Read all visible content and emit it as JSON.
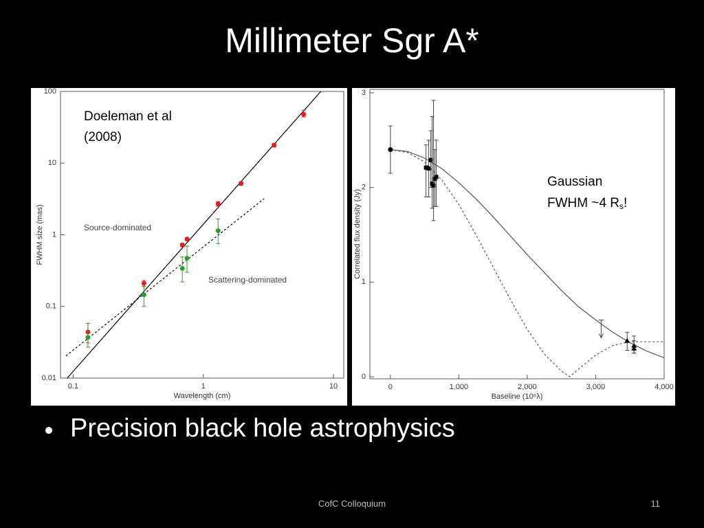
{
  "slide": {
    "title": "Millimeter Sgr A*",
    "bullets": [
      "Precision black hole astrophysics"
    ],
    "footer": "CofC Colloquium",
    "page_number": "11"
  },
  "chart_data": [
    {
      "type": "scatter",
      "log_x": true,
      "log_y": true,
      "x_label": "Wavelength (cm)",
      "y_label": "FWHM size (mas)",
      "xlim": [
        0.08,
        12
      ],
      "ylim": [
        0.01,
        100
      ],
      "xticks": [
        0.1,
        1,
        10
      ],
      "yticks": [
        0.01,
        0.1,
        1,
        10,
        100
      ],
      "annotations": [
        "Doeleman et al",
        "(2008)",
        "Source-dominated",
        "Scattering-dominated"
      ],
      "series": [
        {
          "color": "#e02020",
          "marker": "circle",
          "x": [
            0.13,
            0.35,
            0.69,
            0.75,
            1.3,
            1.95,
            3.5,
            5.9
          ],
          "values": [
            0.044,
            0.21,
            0.72,
            0.87,
            2.7,
            5.2,
            17.8,
            48
          ],
          "error_low": [
            0.031,
            0.19,
            0.68,
            0.83,
            2.5,
            4.9,
            16.8,
            44
          ],
          "error_high": [
            0.058,
            0.23,
            0.76,
            0.91,
            2.9,
            5.5,
            18.8,
            55
          ]
        },
        {
          "color": "#2aa02a",
          "marker": "circle",
          "x": [
            0.13,
            0.35,
            0.69,
            0.75,
            1.3
          ],
          "values": [
            0.037,
            0.146,
            0.34,
            0.47,
            1.14
          ],
          "error_low": [
            0.027,
            0.1,
            0.22,
            0.3,
            0.75
          ],
          "error_high": [
            0.058,
            0.19,
            0.49,
            0.69,
            1.66
          ]
        }
      ],
      "lines": [
        {
          "style": "solid",
          "color": "#000000",
          "x": [
            0.09,
            8.0
          ],
          "values": [
            0.01,
            100
          ]
        },
        {
          "style": "dotted",
          "color": "#000000",
          "x": [
            0.088,
            2.94
          ],
          "values": [
            0.0204,
            3.2
          ]
        }
      ]
    },
    {
      "type": "scatter",
      "log_x": false,
      "log_y": false,
      "x_label": "Baseline (10⁶λ)",
      "y_label": "Correlated flux density (Jy)",
      "xlim": [
        -300,
        4000
      ],
      "ylim": [
        0,
        3
      ],
      "xticks": [
        0,
        {
          "value": 1000,
          "label": "1,000"
        },
        {
          "value": 2000,
          "label": "2,000"
        },
        {
          "value": 3000,
          "label": "3,000"
        },
        {
          "value": 4000,
          "label": "4,000"
        }
      ],
      "yticks": [
        0,
        1,
        2,
        3
      ],
      "annotations": [
        "Gaussian",
        "FWHM ~4 R",
        "s",
        "!"
      ],
      "series": [
        {
          "color": "#000000",
          "marker": "circle",
          "x": [
            0
          ],
          "values": [
            2.4
          ],
          "error_low": [
            2.15
          ],
          "error_high": [
            2.65
          ]
        },
        {
          "color": "#000000",
          "marker": "square",
          "x": [
            520,
            560,
            590,
            610,
            630,
            650,
            670
          ],
          "values": [
            2.21,
            2.2,
            2.29,
            2.04,
            2.02,
            2.09,
            2.11
          ],
          "error_low": [
            1.9,
            1.9,
            2.0,
            1.78,
            1.65,
            1.8,
            1.8
          ],
          "error_high": [
            2.45,
            2.5,
            2.6,
            2.75,
            2.92,
            2.4,
            2.5
          ]
        },
        {
          "color": "#000000",
          "marker": "triangle",
          "x": [
            3460,
            3560,
            3560
          ],
          "values": [
            0.38,
            0.33,
            0.3
          ],
          "error_low": [
            0.28,
            0.25,
            0.25
          ],
          "error_high": [
            0.47,
            0.43,
            0.38
          ]
        },
        {
          "color": "#000000",
          "marker": "upper-limit",
          "x": [
            3080
          ],
          "values": [
            0.6
          ]
        }
      ],
      "lines": [
        {
          "style": "solid",
          "color": "#555555",
          "x": [
            0,
            250,
            500,
            750,
            1000,
            1250,
            1500,
            1750,
            2000,
            2250,
            2500,
            2750,
            3000,
            3250,
            3500,
            3750,
            4000
          ],
          "values": [
            2.4,
            2.38,
            2.31,
            2.2,
            2.05,
            1.88,
            1.69,
            1.49,
            1.29,
            1.1,
            0.91,
            0.74,
            0.6,
            0.47,
            0.36,
            0.27,
            0.2
          ]
        },
        {
          "style": "dotted",
          "color": "#555555",
          "x": [
            0,
            250,
            500,
            750,
            1000,
            1250,
            1500,
            1750,
            2000,
            2250,
            2500,
            2620,
            2750,
            3000,
            3250,
            3500,
            3750,
            4000
          ],
          "values": [
            2.4,
            2.37,
            2.27,
            2.08,
            1.82,
            1.5,
            1.16,
            0.82,
            0.5,
            0.24,
            0.06,
            0,
            0.08,
            0.23,
            0.33,
            0.37,
            0.37,
            0.37
          ]
        }
      ]
    }
  ]
}
